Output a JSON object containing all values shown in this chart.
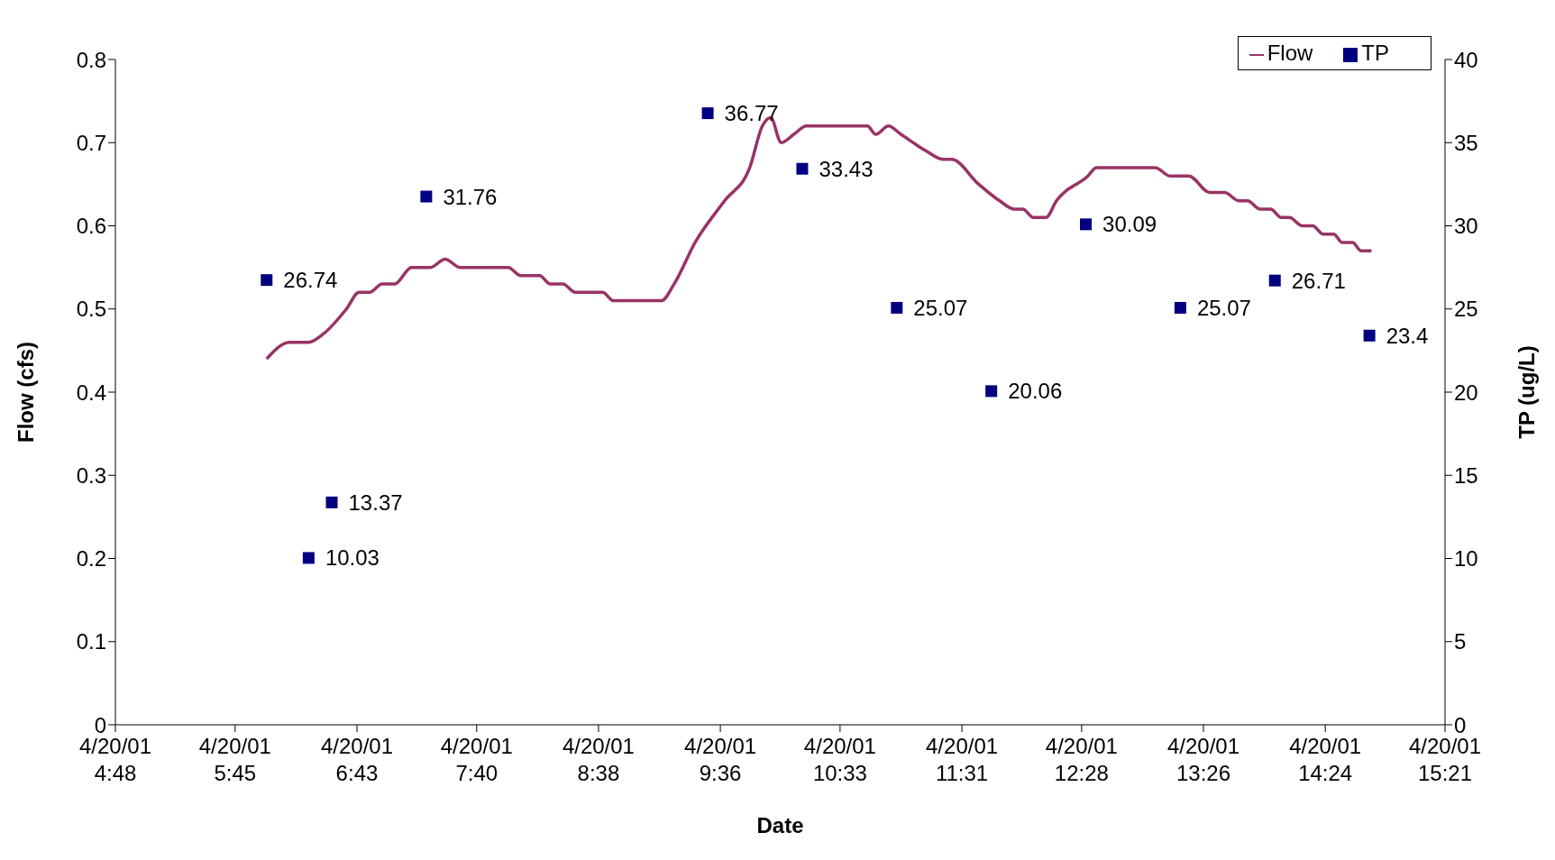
{
  "chart_data": {
    "type": "line",
    "xlabel": "Date",
    "ylabel": "Flow (cfs)",
    "y2label": "TP (ug/L)",
    "xlim": [
      "--04-20T04:48",
      "--04-20T15:21"
    ],
    "xticks": [
      {
        "value": "--04-20T04:48",
        "label": "4/20/01\n4:48"
      },
      {
        "value": "--04-20T05:45",
        "label": "4/20/01\n5:45"
      },
      {
        "value": "--04-20T06:43",
        "label": "4/20/01\n6:43"
      },
      {
        "value": "--04-20T07:40",
        "label": "4/20/01\n7:40"
      },
      {
        "value": "--04-20T08:38",
        "label": "4/20/01\n8:38"
      },
      {
        "value": "--04-20T09:36",
        "label": "4/20/01\n9:36"
      },
      {
        "value": "--04-20T10:33",
        "label": "4/20/01\n10:33"
      },
      {
        "value": "--04-20T11:31",
        "label": "4/20/01\n11:31"
      },
      {
        "value": "--04-20T12:28",
        "label": "4/20/01\n12:28"
      },
      {
        "value": "--04-20T13:26",
        "label": "4/20/01\n13:26"
      },
      {
        "value": "--04-20T14:24",
        "label": "4/20/01\n14:24"
      },
      {
        "value": "--04-20T15:21",
        "label": "4/20/01\n15:21"
      }
    ],
    "ylim": [
      0,
      0.8
    ],
    "yticks": [
      0,
      0.1,
      0.2,
      0.3,
      0.4,
      0.5,
      0.6,
      0.7,
      0.8
    ],
    "y2lim": [
      0,
      40
    ],
    "y2ticks": [
      0,
      5,
      10,
      15,
      20,
      25,
      30,
      35,
      40
    ],
    "grid": false,
    "legend": "top right",
    "series": [
      {
        "name": "Flow",
        "color": "#993366",
        "marker": "none",
        "line_style": "solid",
        "x": [
          "--04-20T06:00",
          "--04-20T06:11",
          "--04-20T06:20",
          "--04-20T06:27",
          "--04-20T06:38",
          "--04-20T06:44",
          "--04-20T06:49",
          "--04-20T06:55",
          "--04-20T07:01",
          "--04-20T07:09",
          "--04-20T07:18",
          "--04-20T07:25",
          "--04-20T07:32",
          "--04-20T07:55",
          "--04-20T08:01",
          "--04-20T08:10",
          "--04-20T08:15",
          "--04-20T08:21",
          "--04-20T08:27",
          "--04-20T08:40",
          "--04-20T08:45",
          "--04-20T09:08",
          "--04-20T09:14",
          "--04-20T09:24",
          "--04-20T09:38",
          "--04-20T09:50",
          "--04-20T09:56",
          "--04-20T10:00",
          "--04-20T10:05",
          "--04-20T10:11",
          "--04-20T10:17",
          "--04-20T10:46",
          "--04-20T10:50",
          "--04-20T10:56",
          "--04-20T11:02",
          "--04-20T11:14",
          "--04-20T11:22",
          "--04-20T11:26",
          "--04-20T11:39",
          "--04-20T11:49",
          "--04-20T11:56",
          "--04-20T12:00",
          "--04-20T12:05",
          "--04-20T12:11",
          "--04-20T12:16",
          "--04-20T12:31",
          "--04-20T12:35",
          "--04-20T13:03",
          "--04-20T13:10",
          "--04-20T13:19",
          "--04-20T13:29",
          "--04-20T13:36",
          "--04-20T13:43",
          "--04-20T13:47",
          "--04-20T13:53",
          "--04-20T13:58",
          "--04-20T14:03",
          "--04-20T14:07",
          "--04-20T14:13",
          "--04-20T14:18",
          "--04-20T14:23",
          "--04-20T14:28",
          "--04-20T14:32",
          "--04-20T14:37",
          "--04-20T14:41",
          "--04-20T14:46"
        ],
        "values": [
          0.44,
          0.46,
          0.46,
          0.47,
          0.5,
          0.52,
          0.52,
          0.53,
          0.53,
          0.55,
          0.55,
          0.56,
          0.55,
          0.55,
          0.54,
          0.54,
          0.53,
          0.53,
          0.52,
          0.52,
          0.51,
          0.51,
          0.53,
          0.58,
          0.63,
          0.67,
          0.72,
          0.73,
          0.7,
          0.71,
          0.72,
          0.72,
          0.71,
          0.72,
          0.71,
          0.69,
          0.68,
          0.68,
          0.65,
          0.63,
          0.62,
          0.62,
          0.61,
          0.61,
          0.63,
          0.66,
          0.67,
          0.67,
          0.66,
          0.66,
          0.64,
          0.64,
          0.63,
          0.63,
          0.62,
          0.62,
          0.61,
          0.61,
          0.6,
          0.6,
          0.59,
          0.59,
          0.58,
          0.58,
          0.57,
          0.57
        ]
      },
      {
        "name": "TP",
        "type": "scatter",
        "axis": "y2",
        "color": "#000080",
        "marker": "square",
        "x": [
          "--04-20T06:00",
          "--04-20T06:20",
          "--04-20T06:31",
          "--04-20T07:16",
          "--04-20T09:30",
          "--04-20T10:15",
          "--04-20T11:00",
          "--04-20T11:45",
          "--04-20T12:30",
          "--04-20T13:15",
          "--04-20T14:00",
          "--04-20T14:45"
        ],
        "values": [
          26.74,
          10.03,
          13.37,
          31.76,
          36.77,
          33.43,
          25.07,
          20.06,
          30.09,
          25.07,
          26.71,
          23.4
        ],
        "data_labels": true
      }
    ]
  }
}
